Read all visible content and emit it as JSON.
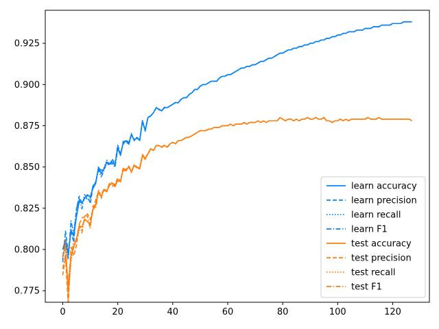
{
  "chart_data": {
    "type": "line",
    "title": "",
    "xlabel": "",
    "ylabel": "",
    "xlim": [
      -6.35,
      133.35
    ],
    "ylim": [
      0.768,
      0.945
    ],
    "xticks": [
      0,
      20,
      40,
      60,
      80,
      100,
      120
    ],
    "yticks": [
      0.775,
      0.8,
      0.825,
      0.85,
      0.875,
      0.9,
      0.925
    ],
    "grid": false,
    "legend_position": "lower-right",
    "colors": {
      "learn": "#0a84f5",
      "test": "#ff7f0e"
    },
    "series": [
      {
        "name": "learn accuracy",
        "group": "learn",
        "style": "solid"
      },
      {
        "name": "learn precision",
        "group": "learn",
        "style": "dashed"
      },
      {
        "name": "learn recall",
        "group": "learn",
        "style": "dotted"
      },
      {
        "name": "learn F1",
        "group": "learn",
        "style": "dashdot"
      },
      {
        "name": "test accuracy",
        "group": "test",
        "style": "solid"
      },
      {
        "name": "test precision",
        "group": "test",
        "style": "dashed"
      },
      {
        "name": "test recall",
        "group": "test",
        "style": "dotted"
      },
      {
        "name": "test F1",
        "group": "test",
        "style": "dashdot"
      }
    ],
    "learn_values": [
      0.8,
      0.806,
      0.797,
      0.812,
      0.808,
      0.82,
      0.829,
      0.828,
      0.831,
      0.833,
      0.832,
      0.837,
      0.84,
      0.85,
      0.846,
      0.849,
      0.853,
      0.852,
      0.853,
      0.851,
      0.862,
      0.857,
      0.865,
      0.866,
      0.864,
      0.87,
      0.866,
      0.868,
      0.866,
      0.878,
      0.872,
      0.88,
      0.881,
      0.883,
      0.886,
      0.885,
      0.884,
      0.886,
      0.886,
      0.887,
      0.888,
      0.889,
      0.889,
      0.891,
      0.892,
      0.892,
      0.894,
      0.895,
      0.897,
      0.897,
      0.899,
      0.9,
      0.9,
      0.901,
      0.902,
      0.902,
      0.902,
      0.904,
      0.905,
      0.905,
      0.906,
      0.906,
      0.907,
      0.908,
      0.909,
      0.91,
      0.91,
      0.911,
      0.911,
      0.912,
      0.912,
      0.913,
      0.914,
      0.914,
      0.915,
      0.916,
      0.916,
      0.917,
      0.918,
      0.919,
      0.919,
      0.92,
      0.921,
      0.921,
      0.922,
      0.922,
      0.923,
      0.923,
      0.924,
      0.924,
      0.925,
      0.925,
      0.926,
      0.926,
      0.927,
      0.927,
      0.928,
      0.928,
      0.929,
      0.929,
      0.93,
      0.93,
      0.931,
      0.931,
      0.932,
      0.932,
      0.932,
      0.933,
      0.933,
      0.933,
      0.934,
      0.934,
      0.934,
      0.935,
      0.935,
      0.935,
      0.936,
      0.936,
      0.936,
      0.936,
      0.937,
      0.937,
      0.937,
      0.937,
      0.938,
      0.938,
      0.938,
      0.938
    ],
    "test_values": [
      0.795,
      0.803,
      0.774,
      0.796,
      0.801,
      0.807,
      0.813,
      0.814,
      0.818,
      0.817,
      0.815,
      0.824,
      0.827,
      0.835,
      0.832,
      0.836,
      0.835,
      0.839,
      0.84,
      0.838,
      0.842,
      0.841,
      0.849,
      0.848,
      0.85,
      0.847,
      0.851,
      0.85,
      0.849,
      0.857,
      0.855,
      0.858,
      0.861,
      0.86,
      0.863,
      0.863,
      0.862,
      0.863,
      0.862,
      0.864,
      0.865,
      0.864,
      0.866,
      0.866,
      0.867,
      0.868,
      0.868,
      0.869,
      0.87,
      0.871,
      0.872,
      0.872,
      0.872,
      0.873,
      0.873,
      0.874,
      0.874,
      0.874,
      0.875,
      0.875,
      0.875,
      0.876,
      0.875,
      0.876,
      0.876,
      0.876,
      0.877,
      0.876,
      0.877,
      0.877,
      0.877,
      0.878,
      0.877,
      0.878,
      0.877,
      0.878,
      0.878,
      0.878,
      0.878,
      0.88,
      0.879,
      0.878,
      0.879,
      0.879,
      0.878,
      0.879,
      0.878,
      0.879,
      0.879,
      0.88,
      0.879,
      0.879,
      0.88,
      0.879,
      0.879,
      0.88,
      0.878,
      0.878,
      0.877,
      0.878,
      0.878,
      0.879,
      0.878,
      0.879,
      0.878,
      0.879,
      0.879,
      0.879,
      0.879,
      0.879,
      0.879,
      0.88,
      0.879,
      0.879,
      0.879,
      0.88,
      0.879,
      0.879,
      0.879,
      0.879,
      0.879,
      0.879,
      0.879,
      0.879,
      0.879,
      0.879,
      0.879,
      0.878
    ]
  }
}
